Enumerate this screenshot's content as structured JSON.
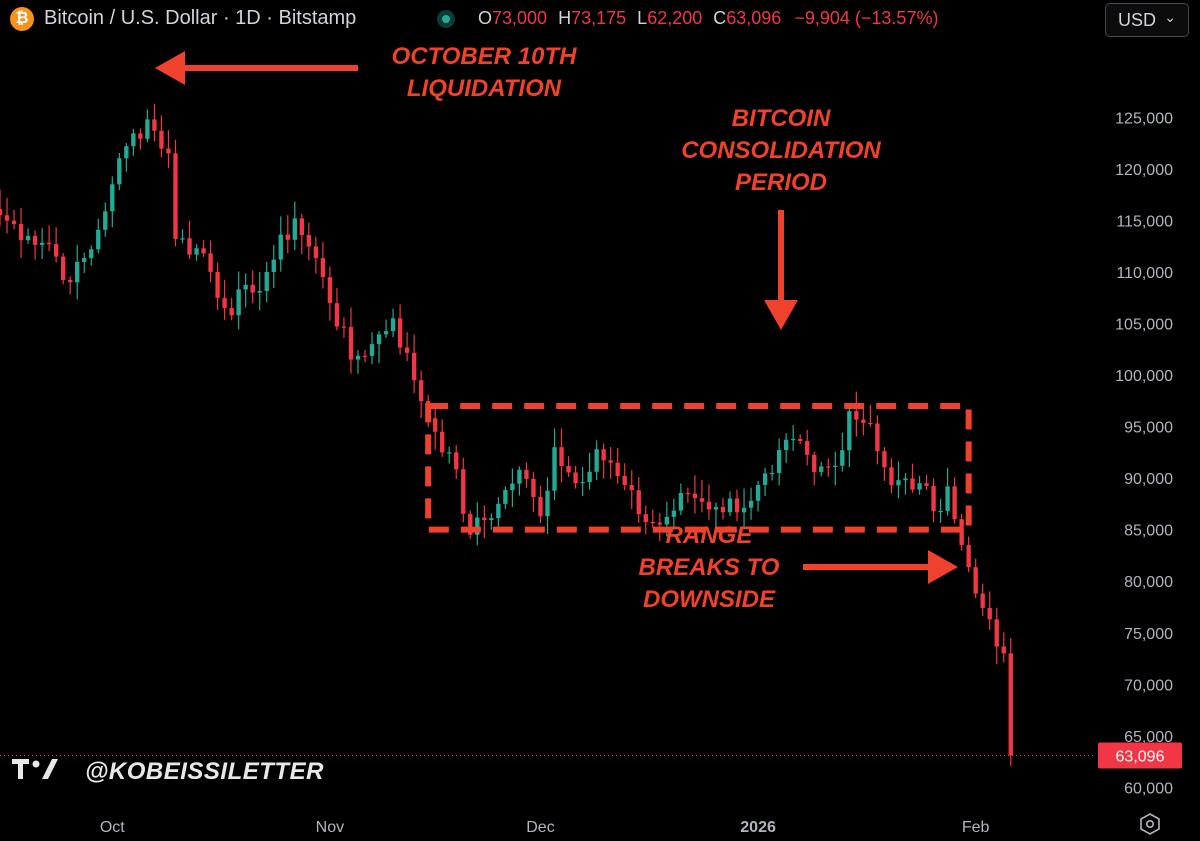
{
  "header": {
    "title": "Bitcoin / U.S. Dollar · 1D · Bitstamp",
    "icon": "bitcoin-icon",
    "ohlc": {
      "o_label": "O",
      "o_value": "73,000",
      "h_label": "H",
      "h_value": "73,175",
      "l_label": "L",
      "l_value": "62,200",
      "c_label": "C",
      "c_value": "63,096",
      "change": "−9,904 (−13.57%)"
    },
    "currency": "USD"
  },
  "colors": {
    "up": "#22ab94",
    "down": "#f23645",
    "annotation": "#f0412c",
    "price_tag": "#f23645"
  },
  "watermark": {
    "handle": "@KOBEISSILETTER"
  },
  "chart_data": {
    "type": "candlestick",
    "ylim": [
      58000,
      132500
    ],
    "yticks": [
      60000,
      65000,
      70000,
      75000,
      80000,
      85000,
      90000,
      95000,
      100000,
      105000,
      110000,
      115000,
      120000,
      125000
    ],
    "ytick_labels": [
      "60,000",
      "65,000",
      "70,000",
      "75,000",
      "80,000",
      "85,000",
      "90,000",
      "95,000",
      "100,000",
      "105,000",
      "110,000",
      "115,000",
      "120,000",
      "125,000"
    ],
    "x_ticks": [
      {
        "label": "Oct",
        "date": "2025-10-01",
        "bold": false
      },
      {
        "label": "Nov",
        "date": "2025-11-01",
        "bold": false
      },
      {
        "label": "Dec",
        "date": "2025-12-01",
        "bold": false
      },
      {
        "label": "2026",
        "date": "2026-01-01",
        "bold": true
      },
      {
        "label": "Feb",
        "date": "2026-02-01",
        "bold": false
      }
    ],
    "x_range": [
      "2025-09-15",
      "2026-02-18"
    ],
    "last_price": 63096,
    "last_price_label": "63,096",
    "close_series": [
      {
        "date": "2025-09-15",
        "close": 115500
      },
      {
        "date": "2025-09-19",
        "close": 113500
      },
      {
        "date": "2025-09-22",
        "close": 112700
      },
      {
        "date": "2025-09-25",
        "close": 109000
      },
      {
        "date": "2025-09-28",
        "close": 112200
      },
      {
        "date": "2025-10-01",
        "close": 118500
      },
      {
        "date": "2025-10-03",
        "close": 122200
      },
      {
        "date": "2025-10-06",
        "close": 124800
      },
      {
        "date": "2025-10-09",
        "close": 121500
      },
      {
        "date": "2025-10-10",
        "close": 113200
      },
      {
        "date": "2025-10-14",
        "close": 111800
      },
      {
        "date": "2025-10-17",
        "close": 106500
      },
      {
        "date": "2025-10-21",
        "close": 108000
      },
      {
        "date": "2025-10-24",
        "close": 111200
      },
      {
        "date": "2025-10-27",
        "close": 115200
      },
      {
        "date": "2025-10-31",
        "close": 109500
      },
      {
        "date": "2025-11-04",
        "close": 101500
      },
      {
        "date": "2025-11-07",
        "close": 103000
      },
      {
        "date": "2025-11-10",
        "close": 105500
      },
      {
        "date": "2025-11-13",
        "close": 99500
      },
      {
        "date": "2025-11-16",
        "close": 94500
      },
      {
        "date": "2025-11-18",
        "close": 92500
      },
      {
        "date": "2025-11-21",
        "close": 84500
      },
      {
        "date": "2025-11-25",
        "close": 87500
      },
      {
        "date": "2025-11-28",
        "close": 90800
      },
      {
        "date": "2025-12-01",
        "close": 86300
      },
      {
        "date": "2025-12-03",
        "close": 93000
      },
      {
        "date": "2025-12-06",
        "close": 89500
      },
      {
        "date": "2025-12-09",
        "close": 92800
      },
      {
        "date": "2025-12-12",
        "close": 90200
      },
      {
        "date": "2025-12-15",
        "close": 86500
      },
      {
        "date": "2025-12-18",
        "close": 85500
      },
      {
        "date": "2025-12-22",
        "close": 88500
      },
      {
        "date": "2025-12-26",
        "close": 87200
      },
      {
        "date": "2025-12-31",
        "close": 87800
      },
      {
        "date": "2026-01-03",
        "close": 90500
      },
      {
        "date": "2026-01-06",
        "close": 93800
      },
      {
        "date": "2026-01-09",
        "close": 90600
      },
      {
        "date": "2026-01-12",
        "close": 91200
      },
      {
        "date": "2026-01-14",
        "close": 96500
      },
      {
        "date": "2026-01-17",
        "close": 95300
      },
      {
        "date": "2026-01-20",
        "close": 89300
      },
      {
        "date": "2026-01-24",
        "close": 89500
      },
      {
        "date": "2026-01-26",
        "close": 86800
      },
      {
        "date": "2026-01-28",
        "close": 89200
      },
      {
        "date": "2026-01-30",
        "close": 83500
      },
      {
        "date": "2026-02-01",
        "close": 78800
      },
      {
        "date": "2026-02-03",
        "close": 76300
      },
      {
        "date": "2026-02-05",
        "close": 73000
      },
      {
        "date": "2026-02-06",
        "close": 63096
      }
    ],
    "annotations": {
      "liquidation": [
        "OCTOBER 10TH",
        "LIQUIDATION"
      ],
      "consolidation": [
        "BITCOIN",
        "CONSOLIDATION",
        "PERIOD"
      ],
      "breakdown": [
        "RANGE",
        "BREAKS TO",
        "DOWNSIDE"
      ]
    },
    "consolidation_range": [
      85000,
      97000
    ]
  }
}
